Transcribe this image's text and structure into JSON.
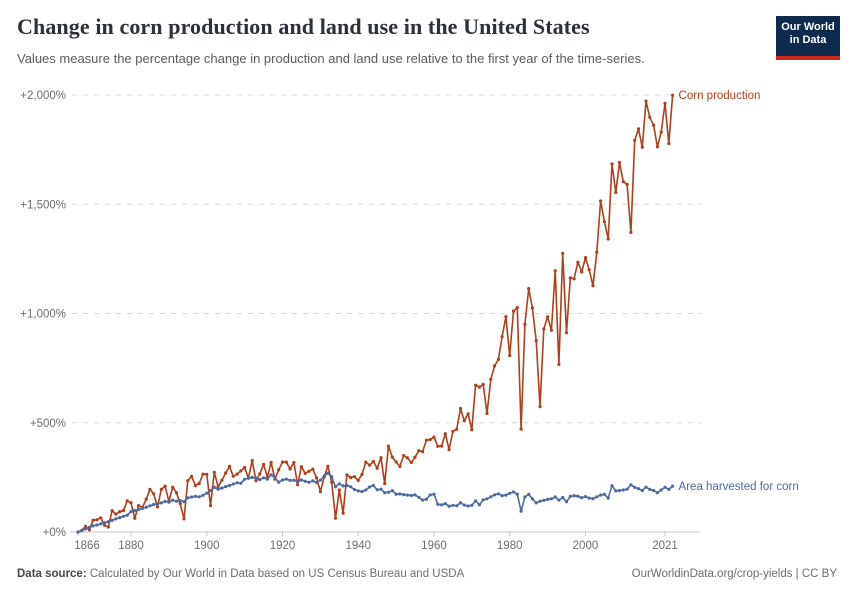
{
  "header": {
    "title": "Change in corn production and land use in the United States",
    "subtitle": "Values measure the percentage change in production and land use relative to the first year of the time-series.",
    "logo": {
      "line1": "Our World",
      "line2": "in Data"
    }
  },
  "footer": {
    "source_label": "Data source:",
    "source_text": " Calculated by Our World in Data based on US Census Bureau and USDA",
    "right_text": "OurWorldinData.org/crop-yields | CC BY"
  },
  "colors": {
    "production_red": "#AF3E1B",
    "area_blue": "#4C6AA0",
    "gridline": "#d8d8d8",
    "axis": "#c4c4c4",
    "tick_text": "#6d6d6d",
    "logo_navy": "#0e2a4c",
    "logo_red": "#cd2a1d"
  },
  "chart_data": {
    "type": "line",
    "title": "Change in corn production and land use in the United States",
    "xlabel": "",
    "ylabel": "",
    "grid": true,
    "legend_position": "end-of-line-labels",
    "xlim": [
      1866,
      2023
    ],
    "ylim": [
      0,
      2000
    ],
    "x_ticks": [
      1866,
      1880,
      1900,
      1920,
      1940,
      1960,
      1980,
      2000,
      2021
    ],
    "y_ticks": [
      {
        "value": 0,
        "label": "+0%"
      },
      {
        "value": 500,
        "label": "+500%"
      },
      {
        "value": 1000,
        "label": "+1,000%"
      },
      {
        "value": 1500,
        "label": "+1,500%"
      },
      {
        "value": 2000,
        "label": "+2,000%"
      }
    ],
    "unit": "% change since 1866",
    "x": [
      1866,
      1867,
      1868,
      1869,
      1870,
      1871,
      1872,
      1873,
      1874,
      1875,
      1876,
      1877,
      1878,
      1879,
      1880,
      1881,
      1882,
      1883,
      1884,
      1885,
      1886,
      1887,
      1888,
      1889,
      1890,
      1891,
      1892,
      1893,
      1894,
      1895,
      1896,
      1897,
      1898,
      1899,
      1900,
      1901,
      1902,
      1903,
      1904,
      1905,
      1906,
      1907,
      1908,
      1909,
      1910,
      1911,
      1912,
      1913,
      1914,
      1915,
      1916,
      1917,
      1918,
      1919,
      1920,
      1921,
      1922,
      1923,
      1924,
      1925,
      1926,
      1927,
      1928,
      1929,
      1930,
      1931,
      1932,
      1933,
      1934,
      1935,
      1936,
      1937,
      1938,
      1939,
      1940,
      1941,
      1942,
      1943,
      1944,
      1945,
      1946,
      1947,
      1948,
      1949,
      1950,
      1951,
      1952,
      1953,
      1954,
      1955,
      1956,
      1957,
      1958,
      1959,
      1960,
      1961,
      1962,
      1963,
      1964,
      1965,
      1966,
      1967,
      1968,
      1969,
      1970,
      1971,
      1972,
      1973,
      1974,
      1975,
      1976,
      1977,
      1978,
      1979,
      1980,
      1981,
      1982,
      1983,
      1984,
      1985,
      1986,
      1987,
      1988,
      1989,
      1990,
      1991,
      1992,
      1993,
      1994,
      1995,
      1996,
      1997,
      1998,
      1999,
      2000,
      2001,
      2002,
      2003,
      2004,
      2005,
      2006,
      2007,
      2008,
      2009,
      2010,
      2011,
      2012,
      2013,
      2014,
      2015,
      2016,
      2017,
      2018,
      2019,
      2020,
      2021,
      2022,
      2023
    ],
    "series": [
      {
        "name": "Corn production",
        "color": "#AF3E1B",
        "values": [
          0,
          8,
          26,
          10,
          54,
          56,
          65,
          31,
          23,
          98,
          82,
          93,
          98,
          143,
          134,
          63,
          121,
          112,
          150,
          195,
          175,
          115,
          195,
          210,
          140,
          205,
          180,
          130,
          60,
          235,
          255,
          213,
          222,
          265,
          264,
          121,
          273,
          207,
          237,
          270,
          300,
          255,
          265,
          279,
          295,
          246,
          327,
          235,
          266,
          310,
          251,
          319,
          242,
          285,
          320,
          320,
          289,
          318,
          216,
          299,
          268,
          278,
          288,
          247,
          185,
          252,
          301,
          228,
          63,
          192,
          86,
          262,
          249,
          253,
          236,
          263,
          320,
          306,
          322,
          292,
          340,
          222,
          393,
          343,
          321,
          300,
          350,
          339,
          318,
          342,
          372,
          368,
          420,
          423,
          434,
          392,
          393,
          450,
          377,
          461,
          470,
          565,
          509,
          541,
          468,
          672,
          663,
          676,
          543,
          699,
          760,
          790,
          894,
          986,
          808,
          1011,
          1027,
          471,
          950,
          1114,
          1025,
          876,
          574,
          929,
          985,
          923,
          1196,
          767,
          1275,
          912,
          1163,
          1159,
          1235,
          1190,
          1256,
          1200,
          1127,
          1280,
          1515,
          1420,
          1341,
          1684,
          1554,
          1691,
          1603,
          1591,
          1371,
          1792,
          1845,
          1761,
          1972,
          1898,
          1862,
          1763,
          1830,
          1962,
          1778,
          1999
        ]
      },
      {
        "name": "Area harvested for corn",
        "color": "#4C6AA0",
        "values": [
          0,
          7,
          14,
          21,
          28,
          32,
          37,
          42,
          47,
          53,
          60,
          66,
          72,
          77,
          94,
          98,
          103,
          108,
          113,
          120,
          126,
          128,
          133,
          140,
          137,
          146,
          141,
          144,
          139,
          156,
          160,
          163,
          161,
          168,
          178,
          190,
          204,
          196,
          201,
          208,
          213,
          219,
          225,
          223,
          241,
          247,
          250,
          246,
          240,
          248,
          242,
          262,
          248,
          228,
          238,
          242,
          236,
          237,
          228,
          238,
          232,
          228,
          234,
          226,
          237,
          256,
          269,
          253,
          207,
          220,
          211,
          213,
          207,
          194,
          188,
          185,
          192,
          206,
          213,
          193,
          196,
          180,
          182,
          189,
          173,
          174,
          171,
          169,
          167,
          170,
          159,
          146,
          150,
          170,
          173,
          127,
          124,
          130,
          118,
          122,
          120,
          134,
          123,
          119,
          122,
          143,
          125,
          147,
          152,
          161,
          170,
          175,
          166,
          169,
          177,
          183,
          173,
          95,
          160,
          172,
          152,
          133,
          141,
          145,
          149,
          152,
          160,
          146,
          158,
          138,
          163,
          166,
          164,
          157,
          162,
          155,
          153,
          161,
          169,
          172,
          155,
          212,
          188,
          190,
          192,
          196,
          216,
          204,
          198,
          190,
          205,
          195,
          190,
          180,
          192,
          205,
          195,
          210
        ]
      }
    ]
  }
}
